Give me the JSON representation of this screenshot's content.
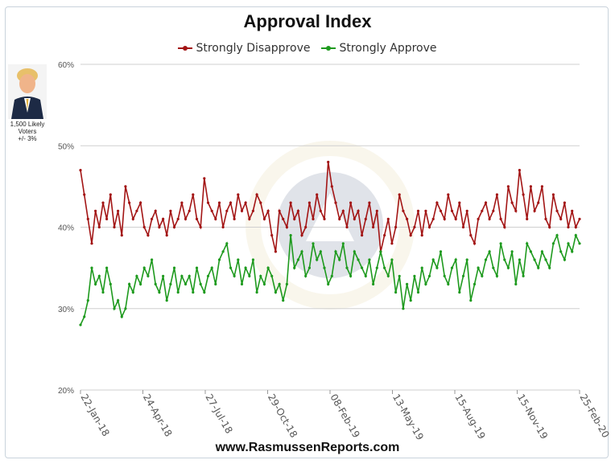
{
  "chart_data": {
    "type": "line",
    "title": "Approval Index",
    "xlabel": "",
    "ylabel": "",
    "ylim": [
      20,
      60
    ],
    "y_ticks": [
      "20%",
      "30%",
      "40%",
      "50%",
      "60%"
    ],
    "x_tick_labels": [
      "22-Jan-18",
      "24-Apr-18",
      "27-Jul-18",
      "29-Oct-18",
      "08-Feb-19",
      "13-May-19",
      "15-Aug-19",
      "15-Nov-19",
      "25-Feb-20"
    ],
    "grid": true,
    "legend_position": "top-center",
    "series": [
      {
        "name": "Strongly Disapprove",
        "color": "#a31515",
        "values": [
          47,
          44,
          41,
          38,
          42,
          40,
          43,
          41,
          44,
          40,
          42,
          39,
          45,
          43,
          41,
          42,
          43,
          40,
          39,
          41,
          42,
          40,
          41,
          39,
          42,
          40,
          41,
          43,
          41,
          42,
          44,
          41,
          40,
          46,
          43,
          42,
          41,
          43,
          40,
          42,
          43,
          41,
          44,
          42,
          43,
          41,
          42,
          44,
          43,
          41,
          42,
          39,
          37,
          42,
          41,
          40,
          43,
          41,
          42,
          39,
          40,
          43,
          41,
          44,
          42,
          41,
          48,
          45,
          43,
          41,
          42,
          40,
          43,
          41,
          42,
          39,
          41,
          43,
          40,
          42,
          37,
          39,
          41,
          38,
          40,
          44,
          42,
          41,
          39,
          40,
          42,
          39,
          42,
          40,
          41,
          43,
          42,
          41,
          44,
          42,
          41,
          43,
          40,
          42,
          39,
          38,
          41,
          42,
          43,
          41,
          42,
          44,
          41,
          40,
          45,
          43,
          42,
          47,
          44,
          41,
          45,
          42,
          43,
          45,
          41,
          40,
          44,
          42,
          41,
          43,
          40,
          42,
          40,
          41
        ]
      },
      {
        "name": "Strongly Approve",
        "color": "#1e9a1e",
        "values": [
          28,
          29,
          31,
          35,
          33,
          34,
          32,
          35,
          33,
          30,
          31,
          29,
          30,
          33,
          32,
          34,
          33,
          35,
          34,
          36,
          33,
          32,
          34,
          31,
          33,
          35,
          32,
          34,
          33,
          34,
          32,
          35,
          33,
          32,
          34,
          35,
          33,
          36,
          37,
          38,
          35,
          34,
          36,
          33,
          35,
          34,
          36,
          32,
          34,
          33,
          35,
          34,
          32,
          33,
          31,
          33,
          39,
          35,
          36,
          37,
          34,
          35,
          38,
          36,
          37,
          35,
          33,
          34,
          37,
          36,
          38,
          35,
          34,
          37,
          36,
          35,
          34,
          36,
          33,
          35,
          37,
          35,
          34,
          36,
          32,
          34,
          30,
          33,
          31,
          34,
          32,
          35,
          33,
          34,
          36,
          35,
          37,
          34,
          33,
          35,
          36,
          32,
          34,
          36,
          31,
          33,
          35,
          34,
          36,
          37,
          35,
          34,
          38,
          36,
          35,
          37,
          33,
          36,
          34,
          38,
          37,
          36,
          35,
          37,
          36,
          35,
          38,
          39,
          37,
          36,
          38,
          37,
          39,
          38
        ]
      }
    ]
  },
  "sidebar": {
    "caption_line1": "1,500 Likely",
    "caption_line2": "Voters",
    "caption_line3": "+/- 3%"
  },
  "footer": {
    "website": "www.RasmussenReports.com"
  }
}
